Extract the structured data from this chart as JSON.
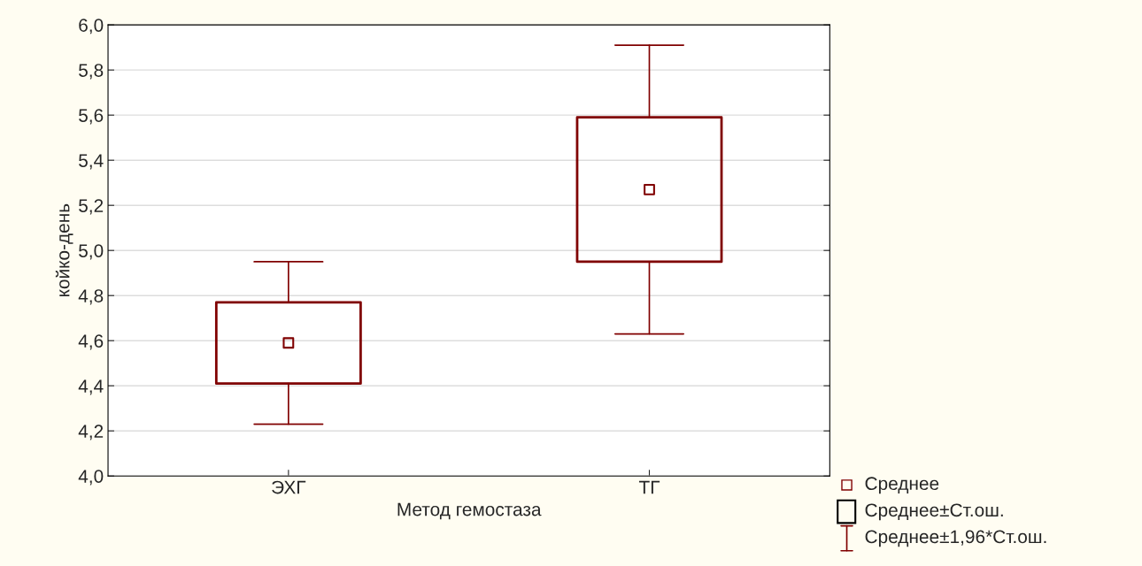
{
  "chart_data": {
    "type": "box",
    "xlabel": "Метод гемостаза",
    "ylabel": "койко-день",
    "categories": [
      "ЭХГ",
      "ТГ"
    ],
    "boxes": [
      {
        "low": 4.23,
        "q1": 4.41,
        "median": 4.59,
        "q3": 4.77,
        "high": 4.95
      },
      {
        "low": 4.63,
        "q1": 4.95,
        "median": 5.27,
        "q3": 5.59,
        "high": 5.91
      }
    ],
    "color": "#800000",
    "ylim": [
      4.0,
      6.0
    ],
    "yticks": [
      {
        "value": 4.0,
        "label": "4,0"
      },
      {
        "value": 4.2,
        "label": "4,2"
      },
      {
        "value": 4.4,
        "label": "4,4"
      },
      {
        "value": 4.6,
        "label": "4,6"
      },
      {
        "value": 4.8,
        "label": "4,8"
      },
      {
        "value": 5.0,
        "label": "5,0"
      },
      {
        "value": 5.2,
        "label": "5,2"
      },
      {
        "value": 5.4,
        "label": "5,4"
      },
      {
        "value": 5.6,
        "label": "5,6"
      },
      {
        "value": 5.8,
        "label": "5,8"
      },
      {
        "value": 6.0,
        "label": "6,0"
      }
    ],
    "grid": "y",
    "marker": "square",
    "annotations": [
      "Среднее",
      "Среднее±Ст.ош.",
      "Среднее±1,96*Ст.ош."
    ]
  }
}
